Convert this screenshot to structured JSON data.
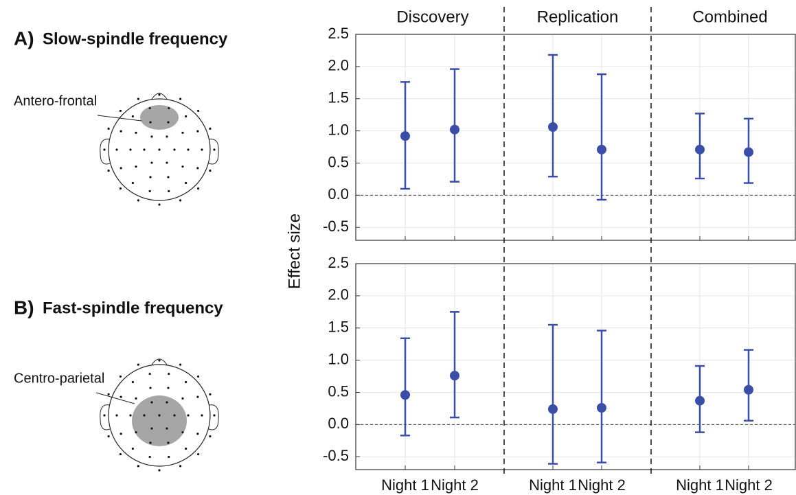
{
  "chart_data": {
    "type": "errorbar",
    "ylabel": "Effect size",
    "color": "#3a4ea8",
    "grid": true,
    "groups": [
      "Discovery",
      "Replication",
      "Combined"
    ],
    "categories": [
      "Night 1",
      "Night 2",
      "Night 1",
      "Night 2",
      "Night 1",
      "Night 2"
    ],
    "ylim": [
      -0.7,
      2.5
    ],
    "yticks": [
      -0.5,
      {
        "value": 0,
        "label": "0.0"
      },
      0.5,
      {
        "value": 1,
        "label": "1.0"
      },
      1.5,
      {
        "value": 2,
        "label": "2.0"
      },
      2.5
    ],
    "panels": [
      {
        "label": "A)",
        "title": "Slow-spindle frequency",
        "region": "Antero-frontal",
        "values": [
          0.92,
          1.02,
          1.06,
          0.71,
          0.71,
          0.67
        ],
        "lower": [
          0.1,
          0.21,
          0.29,
          -0.07,
          0.26,
          0.19
        ],
        "upper": [
          1.76,
          1.96,
          2.18,
          1.88,
          1.27,
          1.19
        ]
      },
      {
        "label": "B)",
        "title": "Fast-spindle frequency",
        "region": "Centro-parietal",
        "values": [
          0.46,
          0.76,
          0.24,
          0.26,
          0.37,
          0.54
        ],
        "lower": [
          -0.17,
          0.11,
          -0.61,
          -0.59,
          -0.12,
          0.06
        ],
        "upper": [
          1.34,
          1.75,
          1.55,
          1.46,
          0.91,
          1.16
        ]
      }
    ]
  }
}
